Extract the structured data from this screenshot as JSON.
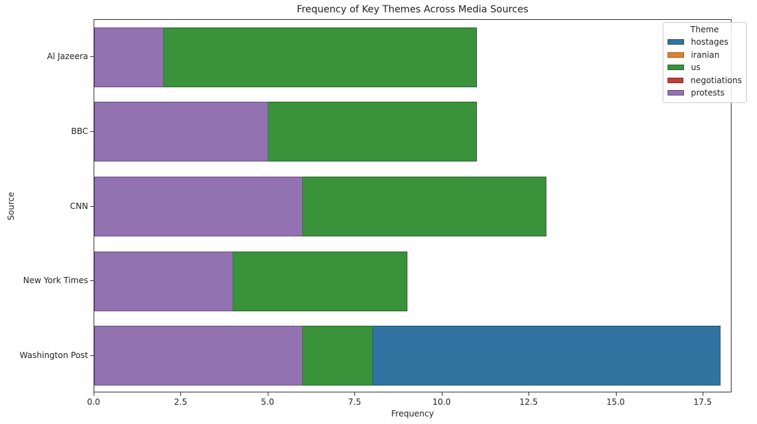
{
  "chart_data": {
    "type": "bar",
    "orientation": "horizontal",
    "title": "Frequency of Key Themes Across Media Sources",
    "xlabel": "Frequency",
    "ylabel": "Source",
    "xlim": [
      0,
      18.3
    ],
    "xticks": [
      "0.0",
      "2.5",
      "5.0",
      "7.5",
      "10.0",
      "12.5",
      "15.0",
      "17.5"
    ],
    "grid": false,
    "legend_position": "upper right",
    "legend_title": "Theme",
    "categories": [
      "Al Jazeera",
      "BBC",
      "CNN",
      "New York Times",
      "Washington Post"
    ],
    "series": [
      {
        "name": "hostages",
        "color": "#3274a1",
        "values": [
          0,
          0,
          0,
          0,
          18
        ]
      },
      {
        "name": "iranian",
        "color": "#e1812c",
        "values": [
          0,
          0,
          0,
          0,
          0
        ]
      },
      {
        "name": "us",
        "color": "#3a923a",
        "values": [
          11,
          11,
          13,
          9,
          8
        ]
      },
      {
        "name": "negotiations",
        "color": "#c03d3e",
        "values": [
          0,
          0,
          0,
          0,
          0
        ]
      },
      {
        "name": "protests",
        "color": "#9372b2",
        "values": [
          2,
          5,
          6,
          4,
          6
        ]
      }
    ],
    "note": "Bars are overlaid (each starts at 0), drawn in series order so later series appear on top."
  }
}
